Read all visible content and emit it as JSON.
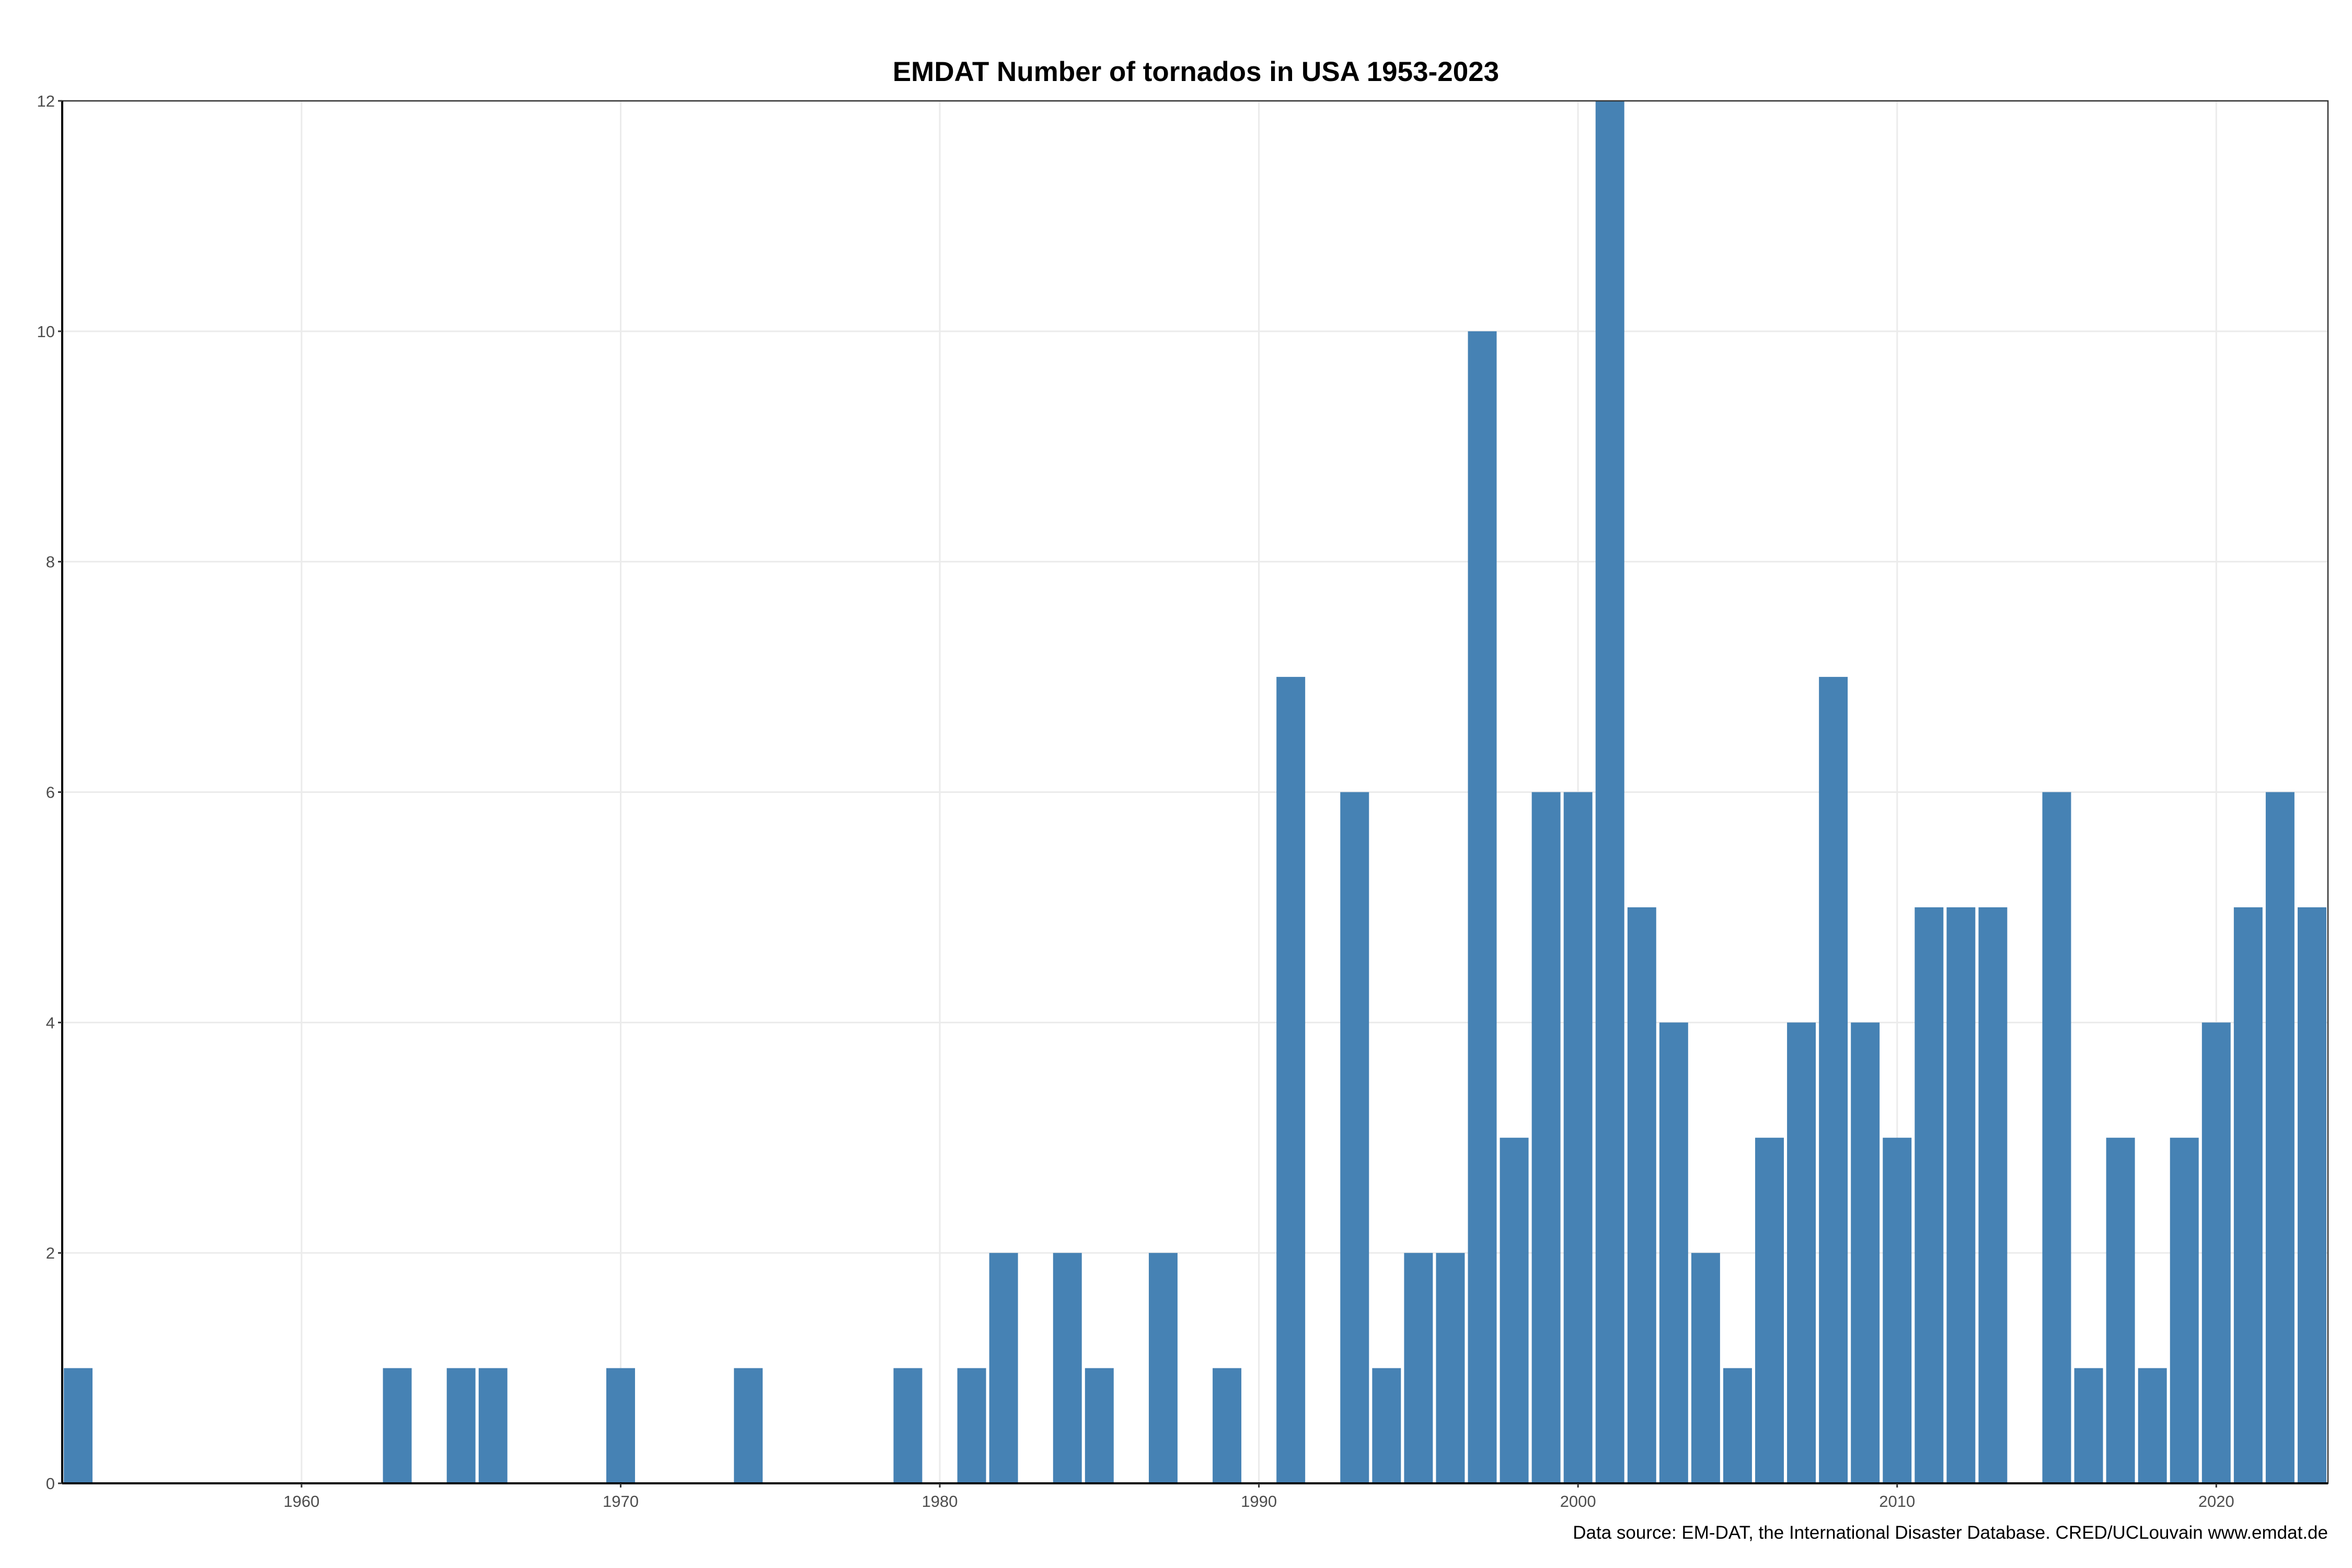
{
  "chart_data": {
    "type": "bar",
    "title": "EMDAT Number of tornados in USA 1953-2023",
    "xlabel": "",
    "ylabel": "",
    "caption": "Data source: EM-DAT, the International Disaster Database. CRED/UCLouvain www.emdat.de",
    "xlim": [
      1952.5,
      2023.5
    ],
    "ylim": [
      0,
      12
    ],
    "x_ticks": [
      1960,
      1970,
      1980,
      1990,
      2000,
      2010,
      2020
    ],
    "x_tick_labels": [
      "1960",
      "1970",
      "1980",
      "1990",
      "2000",
      "2010",
      "2020"
    ],
    "y_ticks": [
      0,
      2,
      4,
      6,
      8,
      10,
      12
    ],
    "y_tick_labels": [
      "0",
      "2",
      "4",
      "6",
      "8",
      "10",
      "12"
    ],
    "grid": true,
    "bar_color": "#4682b4",
    "x": [
      1953,
      1963,
      1965,
      1966,
      1970,
      1974,
      1979,
      1981,
      1982,
      1984,
      1985,
      1987,
      1989,
      1991,
      1993,
      1994,
      1995,
      1996,
      1997,
      1998,
      1999,
      2000,
      2001,
      2002,
      2003,
      2004,
      2005,
      2006,
      2007,
      2008,
      2009,
      2010,
      2011,
      2012,
      2013,
      2015,
      2016,
      2017,
      2018,
      2019,
      2020,
      2021,
      2022,
      2023
    ],
    "values": [
      1,
      1,
      1,
      1,
      1,
      1,
      1,
      1,
      2,
      2,
      1,
      2,
      1,
      7,
      6,
      1,
      2,
      2,
      10,
      3,
      6,
      6,
      12,
      5,
      4,
      2,
      1,
      3,
      4,
      7,
      4,
      3,
      5,
      5,
      5,
      6,
      1,
      3,
      1,
      3,
      4,
      5,
      6,
      5
    ]
  }
}
